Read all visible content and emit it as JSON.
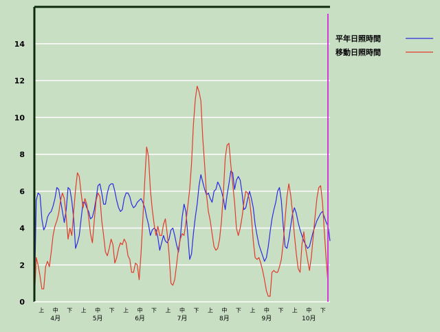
{
  "chart_data": {
    "type": "line",
    "title": "",
    "xlabel": "",
    "ylabel": "",
    "ylim": [
      0,
      16
    ],
    "y_ticks": [
      0,
      2,
      4,
      6,
      8,
      10,
      12,
      14
    ],
    "grid": true,
    "legend_position": "top-right",
    "period_labels": [
      "上",
      "中",
      "下"
    ],
    "months": [
      "4月",
      "5月",
      "6月",
      "7月",
      "8月",
      "9月",
      "10月"
    ],
    "series": [
      {
        "name": "平年日照時間",
        "color": "#2a2ae0",
        "values": [
          0.0,
          5.5,
          5.9,
          5.8,
          4.5,
          3.9,
          4.1,
          4.6,
          4.8,
          4.9,
          5.2,
          5.6,
          6.2,
          6.1,
          5.5,
          4.9,
          4.3,
          5.0,
          6.2,
          6.1,
          5.5,
          4.5,
          2.9,
          3.2,
          3.6,
          4.5,
          5.4,
          5.4,
          5.1,
          4.9,
          4.5,
          4.6,
          5.0,
          5.6,
          6.3,
          6.4,
          5.9,
          5.3,
          5.3,
          5.9,
          6.3,
          6.4,
          6.4,
          6.0,
          5.5,
          5.1,
          4.9,
          5.0,
          5.6,
          5.9,
          5.9,
          5.7,
          5.3,
          5.1,
          5.2,
          5.4,
          5.5,
          5.6,
          5.4,
          5.1,
          4.6,
          4.2,
          3.6,
          3.9,
          4.0,
          3.9,
          3.5,
          2.8,
          3.2,
          3.6,
          3.3,
          3.2,
          3.4,
          3.9,
          4.0,
          3.6,
          3.1,
          2.7,
          3.5,
          4.6,
          5.3,
          4.9,
          3.6,
          2.3,
          2.6,
          3.7,
          4.6,
          5.3,
          6.3,
          6.9,
          6.5,
          6.1,
          5.8,
          5.9,
          5.6,
          5.4,
          6.0,
          6.1,
          6.5,
          6.3,
          6.0,
          5.6,
          5.0,
          5.8,
          6.4,
          7.1,
          7.0,
          6.1,
          6.6,
          6.8,
          6.6,
          5.9,
          5.0,
          5.1,
          5.6,
          6.0,
          5.6,
          5.1,
          4.2,
          3.6,
          3.1,
          2.8,
          2.5,
          2.2,
          2.4,
          3.0,
          3.8,
          4.5,
          5.0,
          5.4,
          6.0,
          6.2,
          5.5,
          4.1,
          3.0,
          2.9,
          3.4,
          4.1,
          4.8,
          5.1,
          4.8,
          4.3,
          3.9,
          3.6,
          3.3,
          3.1,
          2.9,
          3.0,
          3.4,
          3.8,
          4.1,
          4.4,
          4.6,
          4.8,
          4.9,
          4.6,
          4.3,
          4.1,
          3.3
        ]
      },
      {
        "name": "移動日照時間",
        "color": "#e03a2a",
        "values": [
          0.0,
          2.4,
          2.0,
          1.4,
          0.7,
          0.7,
          1.9,
          2.2,
          1.9,
          2.7,
          3.6,
          4.1,
          4.4,
          4.8,
          5.5,
          5.9,
          5.6,
          4.6,
          3.4,
          4.0,
          3.6,
          4.9,
          6.1,
          7.0,
          6.8,
          5.9,
          5.1,
          5.6,
          5.3,
          4.6,
          3.7,
          3.2,
          4.4,
          5.5,
          5.9,
          5.7,
          4.4,
          3.6,
          2.7,
          2.5,
          2.9,
          3.4,
          3.1,
          2.1,
          2.4,
          2.9,
          3.2,
          3.1,
          3.4,
          3.2,
          2.5,
          2.3,
          1.6,
          1.6,
          2.1,
          2.0,
          1.2,
          2.6,
          4.5,
          6.6,
          8.4,
          7.9,
          6.1,
          5.0,
          4.2,
          3.6,
          4.1,
          3.6,
          3.6,
          4.2,
          4.5,
          3.7,
          2.6,
          1.0,
          0.9,
          1.2,
          2.0,
          2.9,
          3.4,
          3.7,
          3.6,
          4.3,
          5.2,
          6.1,
          7.5,
          9.6,
          11.0,
          11.7,
          11.4,
          10.9,
          8.9,
          7.4,
          5.8,
          4.9,
          4.4,
          3.7,
          3.0,
          2.8,
          2.9,
          3.4,
          4.4,
          5.9,
          7.8,
          8.5,
          8.6,
          7.4,
          6.4,
          5.4,
          4.0,
          3.6,
          4.0,
          4.6,
          5.4,
          6.0,
          5.9,
          5.5,
          4.6,
          3.3,
          2.4,
          2.3,
          2.4,
          2.1,
          1.7,
          1.2,
          0.6,
          0.3,
          0.3,
          1.6,
          1.7,
          1.6,
          1.6,
          1.9,
          2.3,
          3.2,
          4.5,
          5.7,
          6.4,
          5.8,
          4.8,
          3.6,
          2.6,
          1.8,
          1.6,
          3.1,
          3.8,
          2.9,
          2.3,
          1.7,
          2.4,
          3.5,
          4.6,
          5.6,
          6.2,
          6.3,
          5.4,
          3.8,
          2.2,
          0.9
        ]
      }
    ]
  }
}
